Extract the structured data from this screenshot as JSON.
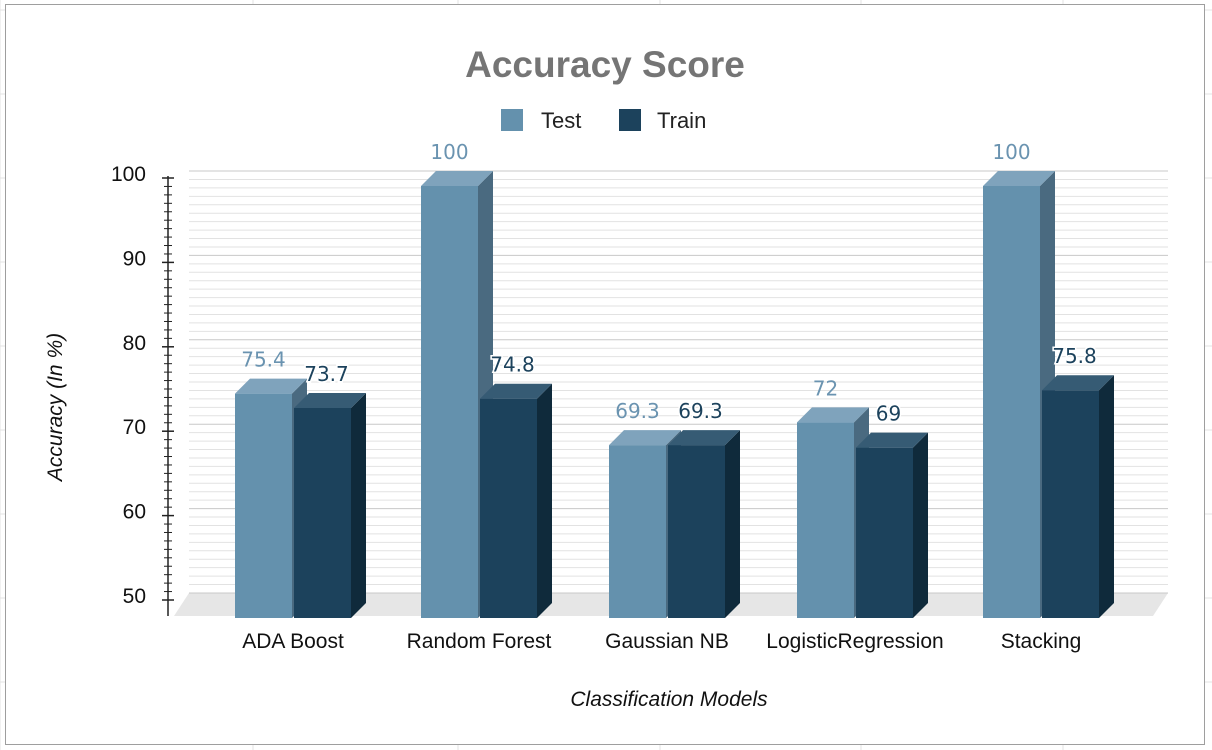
{
  "chart_data": {
    "type": "bar",
    "style": "3d-clustered-column",
    "title": "Accuracy Score",
    "xlabel": "Classification Models",
    "ylabel": "Accuracy (In %)",
    "categories": [
      "ADA Boost",
      "Random Forest",
      "Gaussian NB",
      "LogisticRegression",
      "Stacking"
    ],
    "series": [
      {
        "name": "Test",
        "color": "#6491ad",
        "label_color": "#6a93b0",
        "values": [
          75.4,
          100,
          69.3,
          72,
          100
        ]
      },
      {
        "name": "Train",
        "color": "#1c425c",
        "label_color": "#1c425c",
        "values": [
          73.7,
          74.8,
          69.3,
          69,
          75.8
        ]
      }
    ],
    "data_labels": [
      [
        "75.4",
        "100",
        "69.3",
        "72",
        "100"
      ],
      [
        "73.7",
        "74.8",
        "69.3",
        "69",
        "75.8"
      ]
    ],
    "ylim": [
      50,
      100
    ],
    "yticks": [
      "100",
      "90",
      "80",
      "70",
      "60",
      "50"
    ],
    "grid": true,
    "legend": "top-center"
  }
}
